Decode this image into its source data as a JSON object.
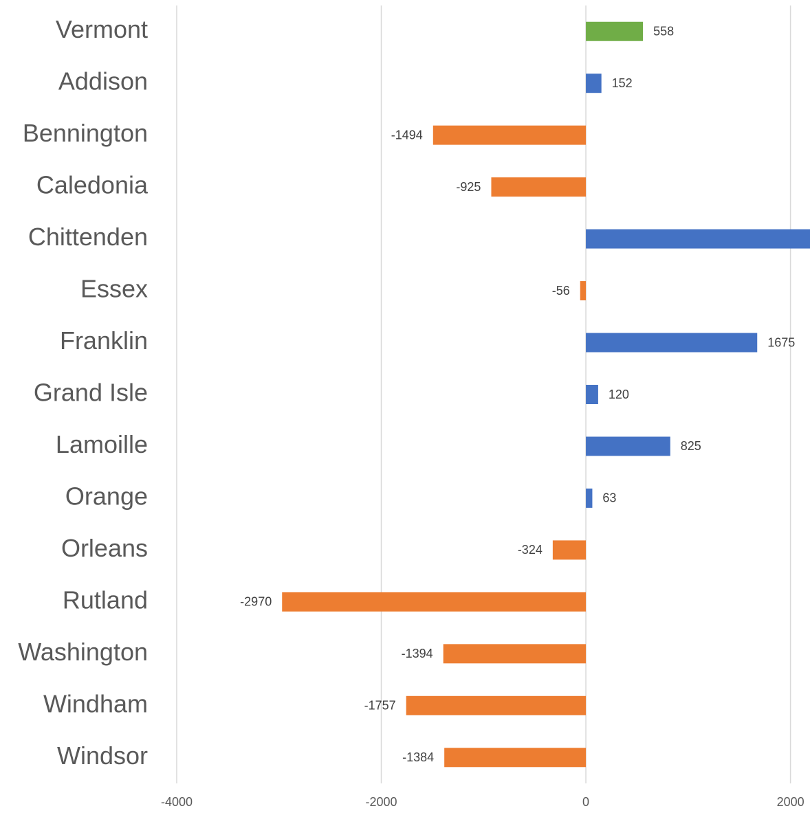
{
  "chart_data": {
    "type": "barh",
    "categories": [
      "Vermont",
      "Addison",
      "Bennington",
      "Caledonia",
      "Chittenden",
      "Essex",
      "Franklin",
      "Grand Isle",
      "Lamoille",
      "Orange",
      "Orleans",
      "Rutland",
      "Washington",
      "Windham",
      "Windsor"
    ],
    "values": [
      558,
      152,
      -1494,
      -925,
      2191,
      -56,
      1675,
      120,
      825,
      63,
      -324,
      -2970,
      -1394,
      -1757,
      -1384
    ],
    "value_labels": [
      "558",
      "152",
      "-1494",
      "-925",
      null,
      "-56",
      "1675",
      "120",
      "825",
      "63",
      "-324",
      "-2970",
      "-1394",
      "-1757",
      "-1384"
    ],
    "colors": [
      "#70ad47",
      "#4472c4",
      "#ed7d31",
      "#ed7d31",
      "#4472c4",
      "#ed7d31",
      "#4472c4",
      "#4472c4",
      "#4472c4",
      "#4472c4",
      "#ed7d31",
      "#ed7d31",
      "#ed7d31",
      "#ed7d31",
      "#ed7d31"
    ],
    "xlim": [
      -4000,
      2191
    ],
    "xticks": [
      -4000,
      -2000,
      0,
      2000
    ],
    "grid": true
  }
}
